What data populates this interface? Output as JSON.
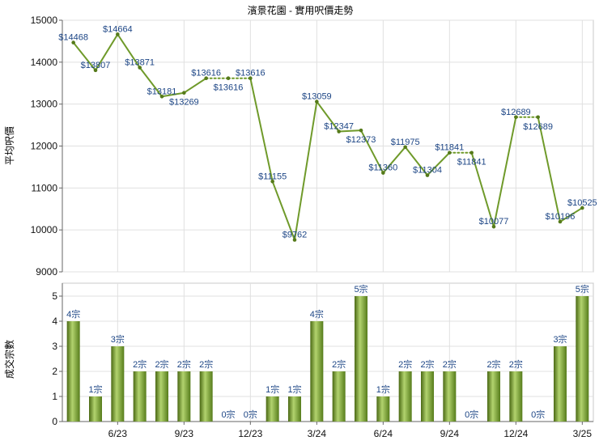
{
  "chart_data": [
    {
      "type": "line",
      "title": "濱景花園 - 實用呎價走勢",
      "ylabel": "平均呎價",
      "ylim": [
        9000,
        15000
      ],
      "yticks": [
        9000,
        10000,
        11000,
        12000,
        13000,
        14000,
        15000
      ],
      "grid": true,
      "line_color": "#6f9a2a",
      "point_color": "#557a1a",
      "label_color": "#1c4585",
      "values": [
        14468,
        13807,
        14664,
        13871,
        13181,
        13269,
        13616,
        13616,
        13616,
        11155,
        9762,
        13059,
        12347,
        12373,
        11360,
        11975,
        11304,
        11841,
        11841,
        10077,
        12689,
        12689,
        10196,
        10525
      ],
      "data_labels": [
        "$14468",
        "$13807",
        "$14664",
        "$13871",
        "$13181",
        "$13269",
        "$13616",
        "$13616",
        "$13616",
        "$11155",
        "$9762",
        "$13059",
        "$12347",
        "$12373",
        "$11360",
        "$11975",
        "$11304",
        "$11841",
        "$11841",
        "$10077",
        "$12689",
        "$12689",
        "$10196",
        "$10525"
      ]
    },
    {
      "type": "bar",
      "ylabel": "成交宗數",
      "ylim": [
        0,
        5
      ],
      "yticks": [
        0,
        1,
        2,
        3,
        4,
        5
      ],
      "grid": true,
      "categories": [
        "",
        "",
        "6/23",
        "",
        "",
        "9/23",
        "",
        "",
        "12/23",
        "",
        "",
        "3/24",
        "",
        "",
        "6/24",
        "",
        "",
        "9/24",
        "",
        "",
        "12/24",
        "",
        "",
        "3/25"
      ],
      "values": [
        4,
        1,
        3,
        2,
        2,
        2,
        2,
        0,
        0,
        1,
        1,
        4,
        2,
        5,
        1,
        2,
        2,
        2,
        0,
        2,
        2,
        0,
        3,
        5
      ],
      "data_labels": [
        "4宗",
        "1宗",
        "3宗",
        "2宗",
        "2宗",
        "2宗",
        "2宗",
        "0宗",
        "0宗",
        "1宗",
        "1宗",
        "4宗",
        "2宗",
        "5宗",
        "1宗",
        "2宗",
        "2宗",
        "2宗",
        "0宗",
        "2宗",
        "2宗",
        "0宗",
        "3宗",
        "5宗"
      ],
      "bar_gradient": [
        "#4a6914",
        "#b2d36e",
        "#567c1b"
      ],
      "label_color": "#1c4585"
    }
  ]
}
